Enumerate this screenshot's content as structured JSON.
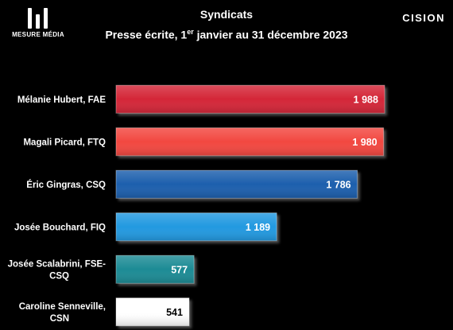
{
  "header": {
    "brand_left": "MESURE MÉDIA",
    "brand_right": "CISION",
    "title_line1": "Syndicats",
    "title_line2_pre": "Presse écrite, 1",
    "title_line2_sup": "er",
    "title_line2_post": " janvier  au 31 décembre 2023"
  },
  "chart_data": {
    "type": "bar",
    "orientation": "horizontal",
    "categories": [
      [
        "Mélanie Hubert, FAE"
      ],
      [
        "Magali Picard, FTQ"
      ],
      [
        "Éric Gingras, CSQ"
      ],
      [
        "Josée Bouchard, FIQ"
      ],
      [
        "Josée Scalabrini, FSE-",
        "CSQ"
      ],
      [
        "Caroline Senneville,",
        "CSN"
      ]
    ],
    "values": [
      1988,
      1980,
      1786,
      1189,
      577,
      541
    ],
    "value_labels": [
      "1 988",
      "1 980",
      "1 786",
      "1 189",
      "577",
      "541"
    ],
    "colors": [
      "#d42537",
      "#f2473f",
      "#1f5fad",
      "#2299e0",
      "#1a8b95",
      "#ffffff"
    ],
    "value_label_colors": [
      "#ffffff",
      "#ffffff",
      "#ffffff",
      "#ffffff",
      "#ffffff",
      "#000000"
    ],
    "xlim": [
      0,
      2000
    ],
    "grid": false,
    "legend": "none"
  }
}
